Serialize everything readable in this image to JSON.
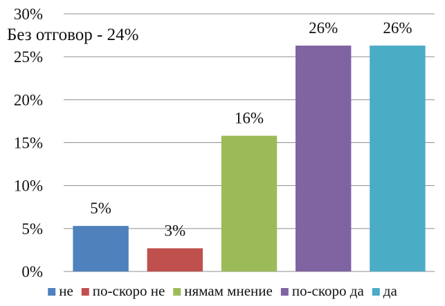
{
  "chart_data": {
    "type": "bar",
    "title": "",
    "xlabel": "",
    "ylabel": "",
    "categories": [
      "не",
      "по-скоро не",
      "нямам мнение",
      "по-скоро да",
      "да"
    ],
    "values": [
      5.3,
      2.7,
      15.8,
      26.3,
      26.3
    ],
    "data_labels": [
      "5%",
      "3%",
      "16%",
      "26%",
      "26%"
    ],
    "colors": [
      "#4F81BD",
      "#C0504D",
      "#9BBB59",
      "#8064A2",
      "#4BACC6"
    ],
    "ylim": [
      0,
      30
    ],
    "yticks": [
      0,
      5,
      10,
      15,
      20,
      25,
      30
    ],
    "ytick_labels": [
      "0%",
      "5%",
      "10%",
      "15%",
      "20%",
      "25%",
      "30%"
    ],
    "grid": true,
    "legend_position": "bottom",
    "annotation": "Без отговор - 24%"
  }
}
